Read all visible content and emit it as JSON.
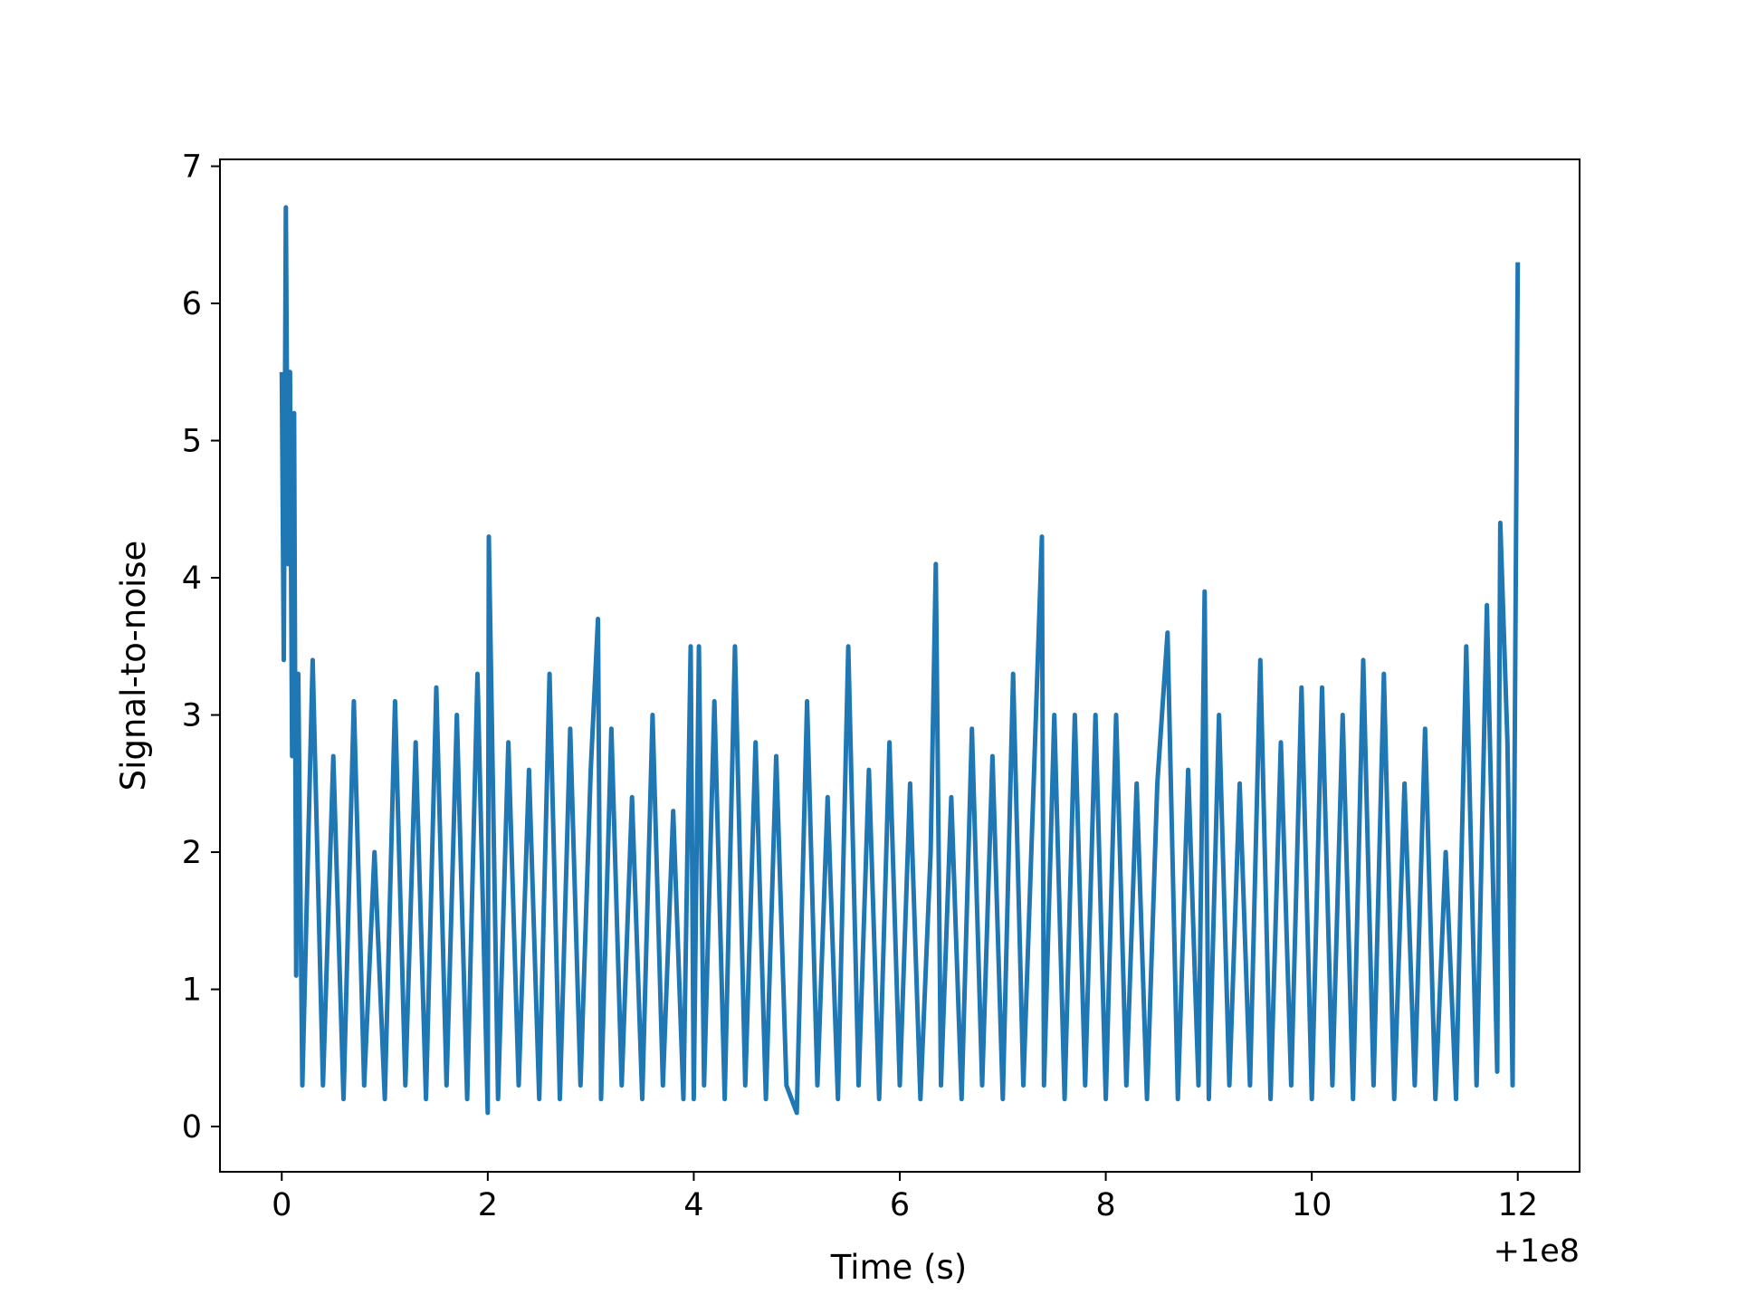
{
  "chart_data": {
    "type": "line",
    "title": "",
    "xlabel": "Time (s)",
    "ylabel": "Signal-to-noise",
    "x_offset_label": "+1e8",
    "xlim": [
      -0.6,
      12.6
    ],
    "ylim": [
      -0.33,
      7.05
    ],
    "xticks": [
      0,
      2,
      4,
      6,
      8,
      10,
      12
    ],
    "yticks": [
      0,
      1,
      2,
      3,
      4,
      5,
      6,
      7
    ],
    "xtick_labels": [
      "0",
      "2",
      "4",
      "6",
      "8",
      "10",
      "12"
    ],
    "ytick_labels": [
      "0",
      "1",
      "2",
      "3",
      "4",
      "5",
      "6",
      "7"
    ],
    "grid": false,
    "legend": "none",
    "line_color": "#1f77b4",
    "series": [
      {
        "x": [
          0.0,
          0.02,
          0.04,
          0.06,
          0.08,
          0.1,
          0.12,
          0.14,
          0.16,
          0.2,
          0.3,
          0.4,
          0.5,
          0.6,
          0.7,
          0.8,
          0.9,
          1.0,
          1.1,
          1.2,
          1.3,
          1.4,
          1.5,
          1.6,
          1.7,
          1.8,
          1.9,
          2.0,
          2.01,
          2.1,
          2.2,
          2.3,
          2.4,
          2.5,
          2.6,
          2.7,
          2.8,
          2.9,
          3.0,
          3.07,
          3.1,
          3.2,
          3.3,
          3.4,
          3.5,
          3.6,
          3.7,
          3.8,
          3.9,
          3.97,
          4.0,
          4.05,
          4.1,
          4.2,
          4.3,
          4.4,
          4.5,
          4.6,
          4.7,
          4.8,
          4.9,
          5.0,
          5.1,
          5.2,
          5.3,
          5.4,
          5.5,
          5.6,
          5.7,
          5.8,
          5.9,
          6.0,
          6.1,
          6.2,
          6.3,
          6.35,
          6.4,
          6.5,
          6.6,
          6.7,
          6.8,
          6.9,
          7.0,
          7.1,
          7.2,
          7.3,
          7.38,
          7.4,
          7.5,
          7.6,
          7.7,
          7.8,
          7.9,
          8.0,
          8.1,
          8.2,
          8.3,
          8.4,
          8.5,
          8.6,
          8.7,
          8.8,
          8.9,
          8.96,
          9.0,
          9.1,
          9.2,
          9.3,
          9.4,
          9.5,
          9.6,
          9.7,
          9.8,
          9.9,
          10.0,
          10.1,
          10.2,
          10.3,
          10.4,
          10.5,
          10.6,
          10.7,
          10.8,
          10.9,
          11.0,
          11.1,
          11.2,
          11.3,
          11.4,
          11.5,
          11.6,
          11.7,
          11.8,
          11.83,
          11.9,
          11.95,
          12.0
        ],
        "y": [
          5.5,
          3.4,
          6.7,
          4.1,
          5.5,
          2.7,
          5.2,
          1.1,
          3.3,
          0.3,
          3.4,
          0.3,
          2.7,
          0.2,
          3.1,
          0.3,
          2.0,
          0.2,
          3.1,
          0.3,
          2.8,
          0.2,
          3.2,
          0.3,
          3.0,
          0.2,
          3.3,
          0.1,
          4.3,
          0.2,
          2.8,
          0.3,
          2.6,
          0.2,
          3.3,
          0.2,
          2.9,
          0.3,
          2.6,
          3.7,
          0.2,
          2.9,
          0.3,
          2.4,
          0.2,
          3.0,
          0.3,
          2.3,
          0.2,
          3.5,
          0.2,
          3.5,
          0.3,
          3.1,
          0.2,
          3.5,
          0.3,
          2.8,
          0.2,
          2.7,
          0.3,
          0.1,
          3.1,
          0.3,
          2.4,
          0.2,
          3.5,
          0.3,
          2.6,
          0.2,
          2.8,
          0.3,
          2.5,
          0.2,
          2.0,
          4.1,
          0.3,
          2.4,
          0.2,
          2.9,
          0.3,
          2.7,
          0.2,
          3.3,
          0.3,
          2.5,
          4.3,
          0.3,
          3.0,
          0.2,
          3.0,
          0.3,
          3.0,
          0.2,
          3.0,
          0.3,
          2.5,
          0.2,
          2.5,
          3.6,
          0.2,
          2.6,
          0.3,
          3.9,
          0.2,
          3.0,
          0.3,
          2.5,
          0.3,
          3.4,
          0.2,
          2.8,
          0.3,
          3.2,
          0.2,
          3.2,
          0.3,
          3.0,
          0.2,
          3.4,
          0.3,
          3.3,
          0.2,
          2.5,
          0.3,
          2.9,
          0.2,
          2.0,
          0.2,
          3.5,
          0.3,
          3.8,
          0.4,
          4.4,
          2.8,
          0.3,
          6.3
        ]
      }
    ]
  }
}
